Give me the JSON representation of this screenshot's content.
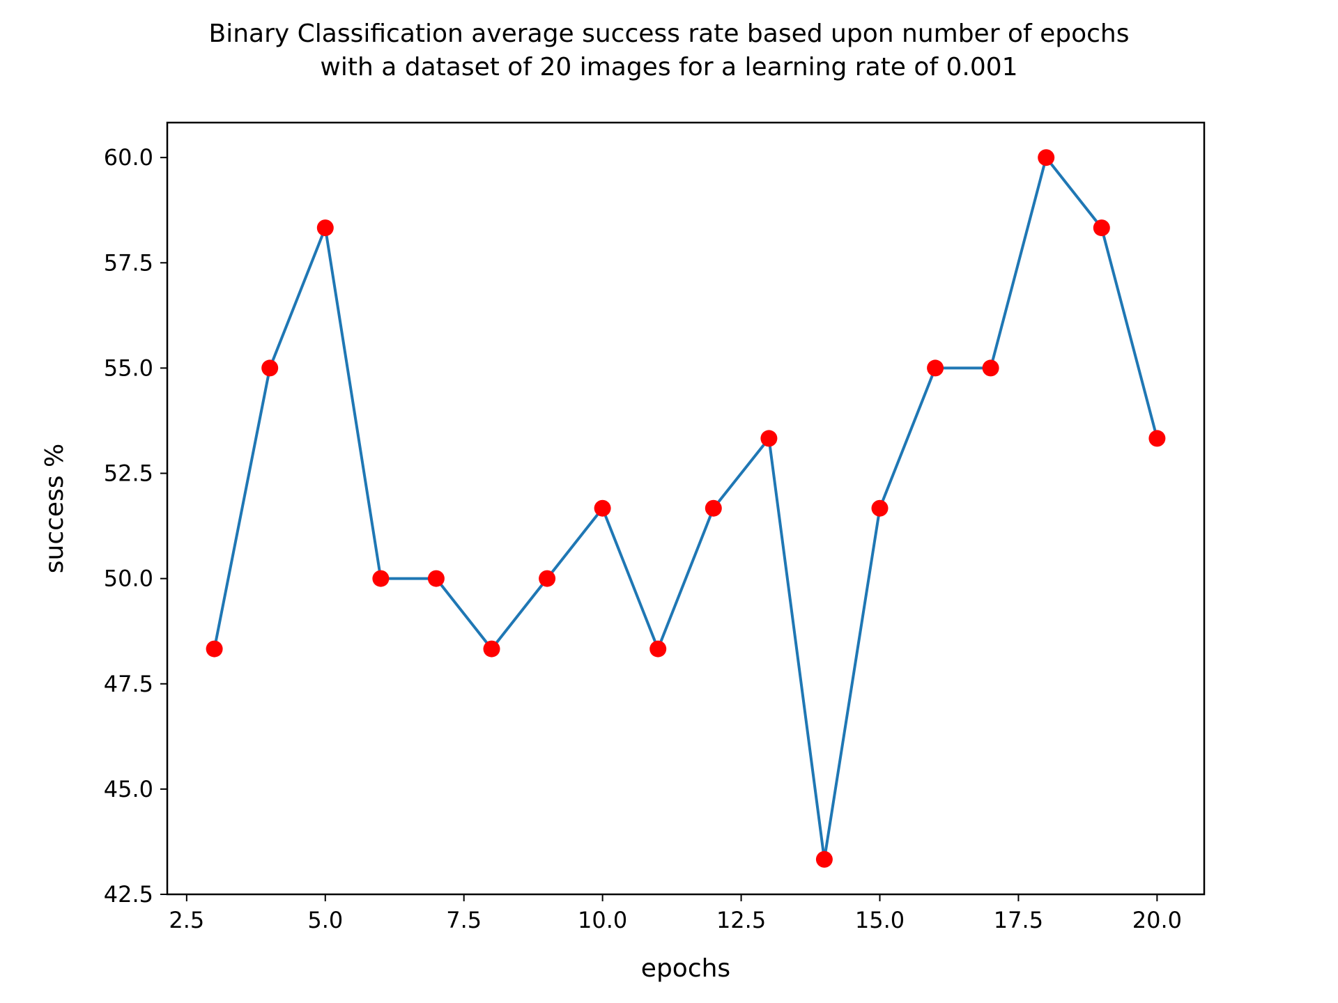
{
  "chart_data": {
    "type": "line",
    "title_lines": [
      "Binary Classification average success rate based upon number of epochs",
      "with a dataset of 20 images for a learning rate of 0.001"
    ],
    "xlabel": "epochs",
    "ylabel": "success %",
    "xlim": [
      2.15,
      20.85
    ],
    "ylim": [
      42.5,
      60.83
    ],
    "xticks": [
      2.5,
      5.0,
      7.5,
      10.0,
      12.5,
      15.0,
      17.5,
      20.0
    ],
    "xtick_labels": [
      "2.5",
      "5.0",
      "7.5",
      "10.0",
      "12.5",
      "15.0",
      "17.5",
      "20.0"
    ],
    "yticks": [
      42.5,
      45.0,
      47.5,
      50.0,
      52.5,
      55.0,
      57.5,
      60.0
    ],
    "ytick_labels": [
      "42.5",
      "45.0",
      "47.5",
      "50.0",
      "52.5",
      "55.0",
      "57.5",
      "60.0"
    ],
    "grid": false,
    "series": [
      {
        "x": [
          3,
          4,
          5,
          6,
          7,
          8,
          9,
          10,
          11,
          12,
          13,
          14,
          15,
          16,
          17,
          18,
          19,
          20
        ],
        "values": [
          48.33,
          55.0,
          58.33,
          50.0,
          50.0,
          48.33,
          50.0,
          51.67,
          48.33,
          51.67,
          53.33,
          43.33,
          51.67,
          55.0,
          55.0,
          60.0,
          58.33,
          53.33
        ],
        "line_color": "#1f77b4",
        "marker_color": "#ff0000"
      }
    ]
  }
}
